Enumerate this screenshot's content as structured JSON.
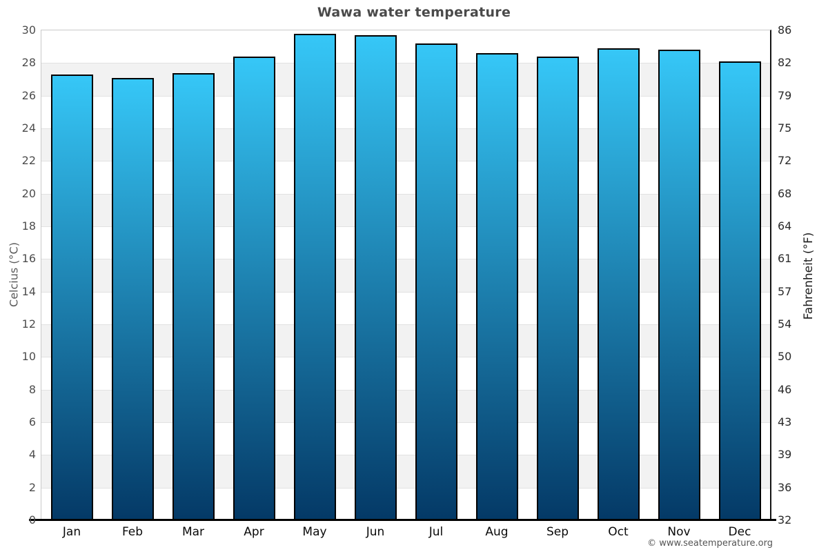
{
  "title": "Wawa water temperature",
  "footer": "© www.seatemperature.org",
  "axes": {
    "left_label": "Celcius (°C)",
    "right_label": "Fahrenheit (°F)"
  },
  "chart_data": {
    "type": "bar",
    "title": "Wawa water temperature",
    "categories": [
      "Jan",
      "Feb",
      "Mar",
      "Apr",
      "May",
      "Jun",
      "Jul",
      "Aug",
      "Sep",
      "Oct",
      "Nov",
      "Dec"
    ],
    "values": [
      27.3,
      27.1,
      27.4,
      28.4,
      29.8,
      29.7,
      29.2,
      28.6,
      28.4,
      28.9,
      28.8,
      28.1
    ],
    "unit": "°C",
    "ylabel_left": "Celcius (°C)",
    "ylabel_right": "Fahrenheit (°F)",
    "ylim": [
      0,
      30
    ],
    "ytick_step_celsius": 2,
    "yticks_celsius": [
      30,
      28,
      26,
      24,
      22,
      20,
      18,
      16,
      14,
      12,
      10,
      8,
      6,
      4,
      2,
      0
    ],
    "yticks_fahrenheit": [
      86,
      82,
      79,
      75,
      72,
      68,
      64,
      61,
      57,
      54,
      50,
      46,
      43,
      39,
      36,
      32
    ],
    "legend": "none",
    "grid": "horizontal alternating bands",
    "colors": {
      "bar_gradient_top": "#36c7f7",
      "bar_gradient_bottom": "#043966",
      "bar_border": "#000000",
      "band_white": "#ffffff",
      "band_gray": "#f2f2f2",
      "gridline": "#e2e2e2",
      "frame": "#c9c9c9",
      "right_axis_line": "#141414",
      "bottom_axis_line": "#000000",
      "title_color": "#4a4a4a",
      "tick_color_left": "#4d4d4d",
      "tick_color_right": "#2a2a2a"
    }
  }
}
